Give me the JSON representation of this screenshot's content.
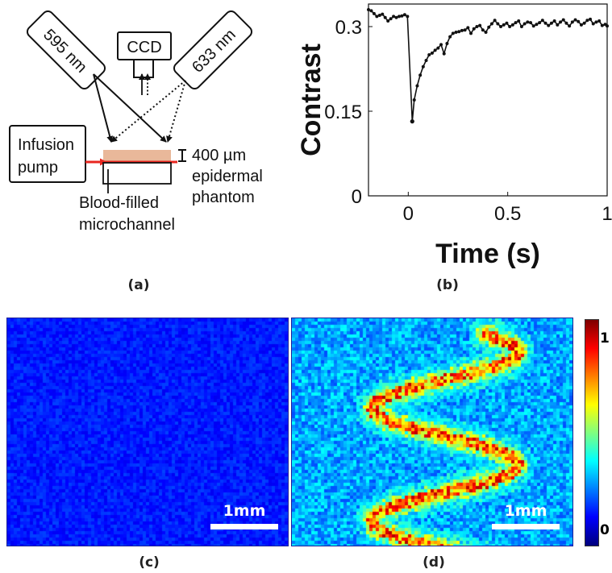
{
  "panel_a": {
    "caption": "(a)",
    "laser_595": "595 nm",
    "laser_633": "633 nm",
    "camera": "CCD",
    "pump_line1": "Infusion",
    "pump_line2": "pump",
    "thickness": "400 µm",
    "phantom_line1": "epidermal",
    "phantom_line2": "phantom",
    "channel_line1": "Blood-filled",
    "channel_line2": "microchannel",
    "colors": {
      "phantom": "#e9b89a",
      "channel": "#e8261f"
    }
  },
  "panel_b": {
    "caption": "(b)",
    "chart_data": {
      "type": "line",
      "xlabel": "Time (s)",
      "ylabel": "Contrast",
      "xlim": [
        -0.2,
        1.0
      ],
      "ylim": [
        0,
        0.34
      ],
      "xticks": [
        {
          "v": 0,
          "label": "0"
        },
        {
          "v": 0.5,
          "label": "0.5"
        },
        {
          "v": 1,
          "label": "1"
        }
      ],
      "yticks": [
        {
          "v": 0,
          "label": "0"
        },
        {
          "v": 0.15,
          "label": "0.15"
        },
        {
          "v": 0.3,
          "label": "0.3"
        }
      ],
      "grid": false,
      "series": [
        {
          "x": [
            -0.2,
            -0.186,
            -0.172,
            -0.158,
            -0.144,
            -0.13,
            -0.116,
            -0.102,
            -0.088,
            -0.074,
            -0.06,
            -0.046,
            -0.032,
            -0.018,
            -0.004,
            0.02,
            0.03,
            0.045,
            0.06,
            0.075,
            0.09,
            0.105,
            0.12,
            0.135,
            0.15,
            0.165,
            0.18,
            0.195,
            0.21,
            0.225,
            0.24,
            0.255,
            0.27,
            0.285,
            0.3,
            0.315,
            0.33,
            0.345,
            0.36,
            0.375,
            0.39,
            0.405,
            0.42,
            0.435,
            0.45,
            0.465,
            0.48,
            0.495,
            0.51,
            0.525,
            0.54,
            0.555,
            0.57,
            0.585,
            0.6,
            0.615,
            0.63,
            0.645,
            0.66,
            0.675,
            0.69,
            0.705,
            0.72,
            0.735,
            0.75,
            0.765,
            0.78,
            0.795,
            0.81,
            0.825,
            0.84,
            0.855,
            0.87,
            0.885,
            0.9,
            0.915,
            0.93,
            0.945,
            0.96,
            0.975,
            0.99,
            1.0
          ],
          "y": [
            0.33,
            0.328,
            0.323,
            0.318,
            0.32,
            0.322,
            0.316,
            0.31,
            0.314,
            0.318,
            0.316,
            0.318,
            0.319,
            0.321,
            0.318,
            0.132,
            0.17,
            0.195,
            0.214,
            0.229,
            0.24,
            0.25,
            0.253,
            0.258,
            0.262,
            0.268,
            0.252,
            0.27,
            0.282,
            0.288,
            0.29,
            0.291,
            0.293,
            0.294,
            0.298,
            0.288,
            0.296,
            0.3,
            0.302,
            0.294,
            0.29,
            0.299,
            0.305,
            0.311,
            0.305,
            0.3,
            0.303,
            0.306,
            0.3,
            0.303,
            0.307,
            0.31,
            0.3,
            0.305,
            0.308,
            0.307,
            0.301,
            0.304,
            0.307,
            0.311,
            0.306,
            0.302,
            0.306,
            0.31,
            0.303,
            0.308,
            0.312,
            0.306,
            0.301,
            0.308,
            0.312,
            0.309,
            0.303,
            0.306,
            0.311,
            0.313,
            0.305,
            0.308,
            0.31,
            0.302,
            0.304,
            0.301
          ]
        }
      ]
    }
  },
  "panel_c": {
    "caption": "(c)",
    "scalebar": "1mm"
  },
  "panel_d": {
    "caption": "(d)",
    "scalebar": "1mm"
  },
  "colorbar": {
    "max_label": "1",
    "min_label": "0"
  }
}
